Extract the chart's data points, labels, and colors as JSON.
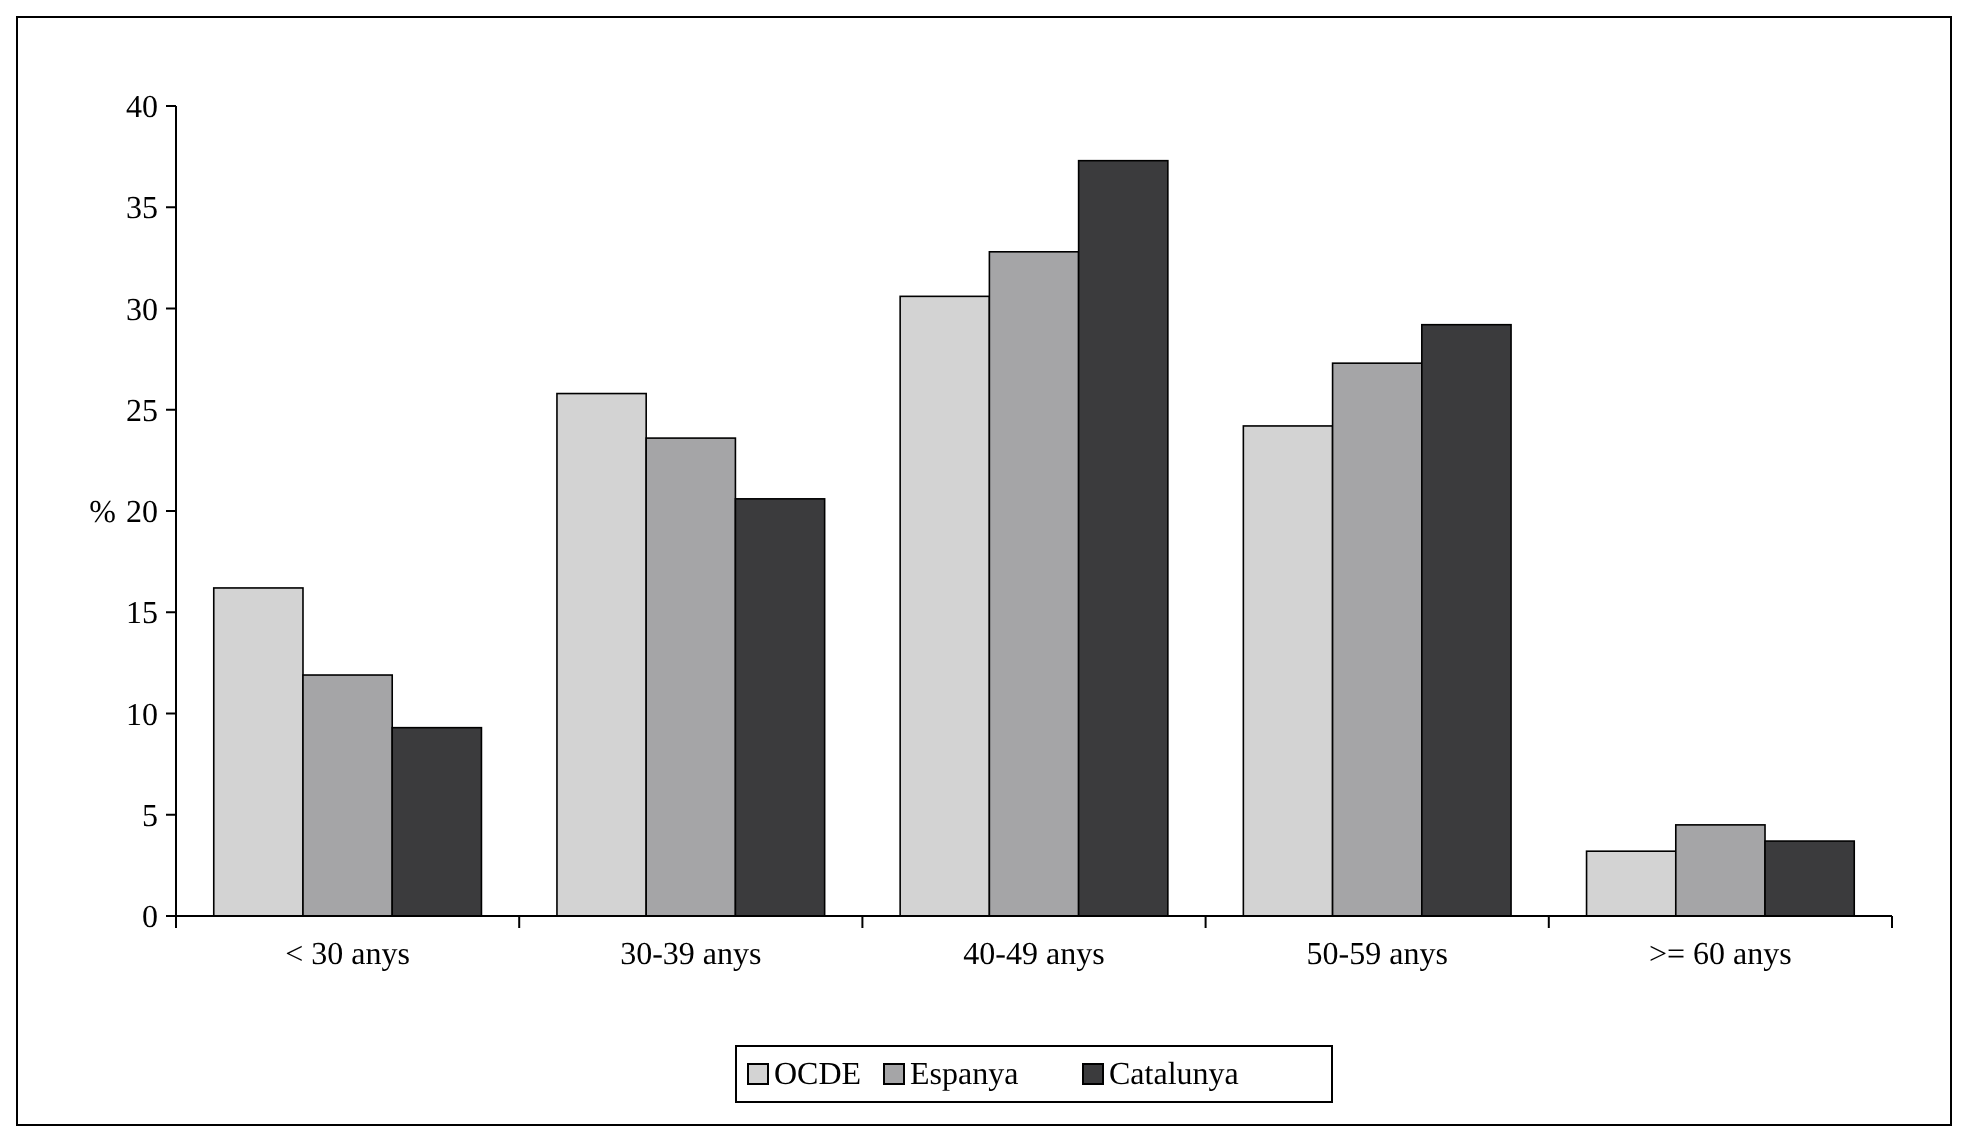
{
  "chart_data": {
    "type": "bar",
    "ylabel": "%",
    "categories": [
      "< 30 anys",
      "30-39 anys",
      "40-49 anys",
      "50-59 anys",
      ">= 60 anys"
    ],
    "series": [
      {
        "name": "OCDE",
        "color": "#d3d3d3",
        "values": [
          16.2,
          25.8,
          30.6,
          24.2,
          3.2
        ]
      },
      {
        "name": "Espanya",
        "color": "#a5a5a7",
        "values": [
          11.9,
          23.6,
          32.8,
          27.3,
          4.5
        ]
      },
      {
        "name": "Catalunya",
        "color": "#3b3b3d",
        "values": [
          9.3,
          20.6,
          37.3,
          29.2,
          3.7
        ]
      }
    ],
    "ylim": [
      0,
      40
    ],
    "yticks": [
      0,
      5,
      10,
      15,
      20,
      25,
      30,
      35,
      40
    ],
    "grid": false,
    "legend": "bottom"
  }
}
